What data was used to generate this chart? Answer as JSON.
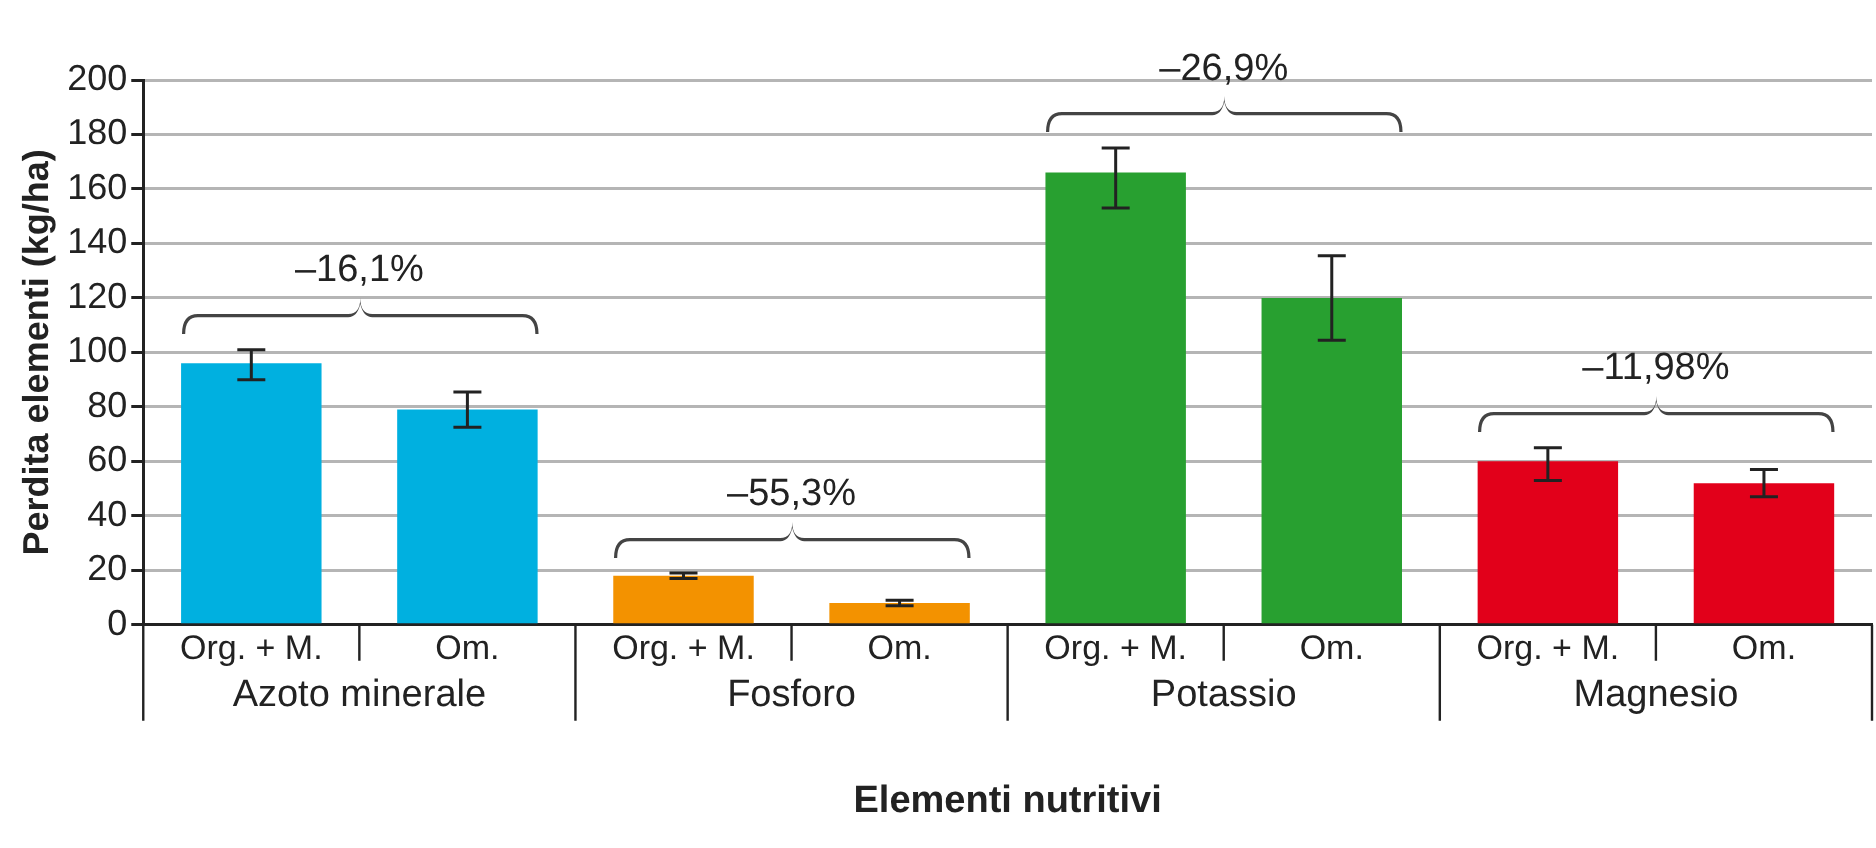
{
  "chart_data": {
    "type": "bar",
    "xlabel": "Elementi nutritivi",
    "ylabel": "Perdita elementi (kg/ha)",
    "categories": [
      "Azoto minerale",
      "Fosforo",
      "Potassio",
      "Magnesio"
    ],
    "series": [
      {
        "name": "Org. + M.",
        "colors": [
          "#00b0e0",
          "#f39200",
          "#28a030",
          "#e2001a"
        ],
        "values": [
          96,
          18,
          166,
          60
        ],
        "errors": [
          [
            90,
            101
          ],
          [
            17,
            19
          ],
          [
            153,
            175
          ],
          [
            53,
            65
          ]
        ]
      },
      {
        "name": "Om.",
        "colors": [
          "#00b0e0",
          "#f39200",
          "#28a030",
          "#e2001a"
        ],
        "values": [
          79,
          8,
          120,
          52
        ],
        "errors": [
          [
            72.5,
            85.5
          ],
          [
            7,
            9
          ],
          [
            104.5,
            135.5
          ],
          [
            47,
            57
          ]
        ]
      }
    ],
    "annotations": [
      "–16,1%",
      "–55,3%",
      "–26,9%",
      "–11,98%"
    ],
    "ylim": [
      0,
      200
    ],
    "yticks": [
      0,
      20,
      40,
      60,
      80,
      100,
      120,
      140,
      160,
      180,
      200
    ],
    "grid": "y",
    "legend": false
  }
}
